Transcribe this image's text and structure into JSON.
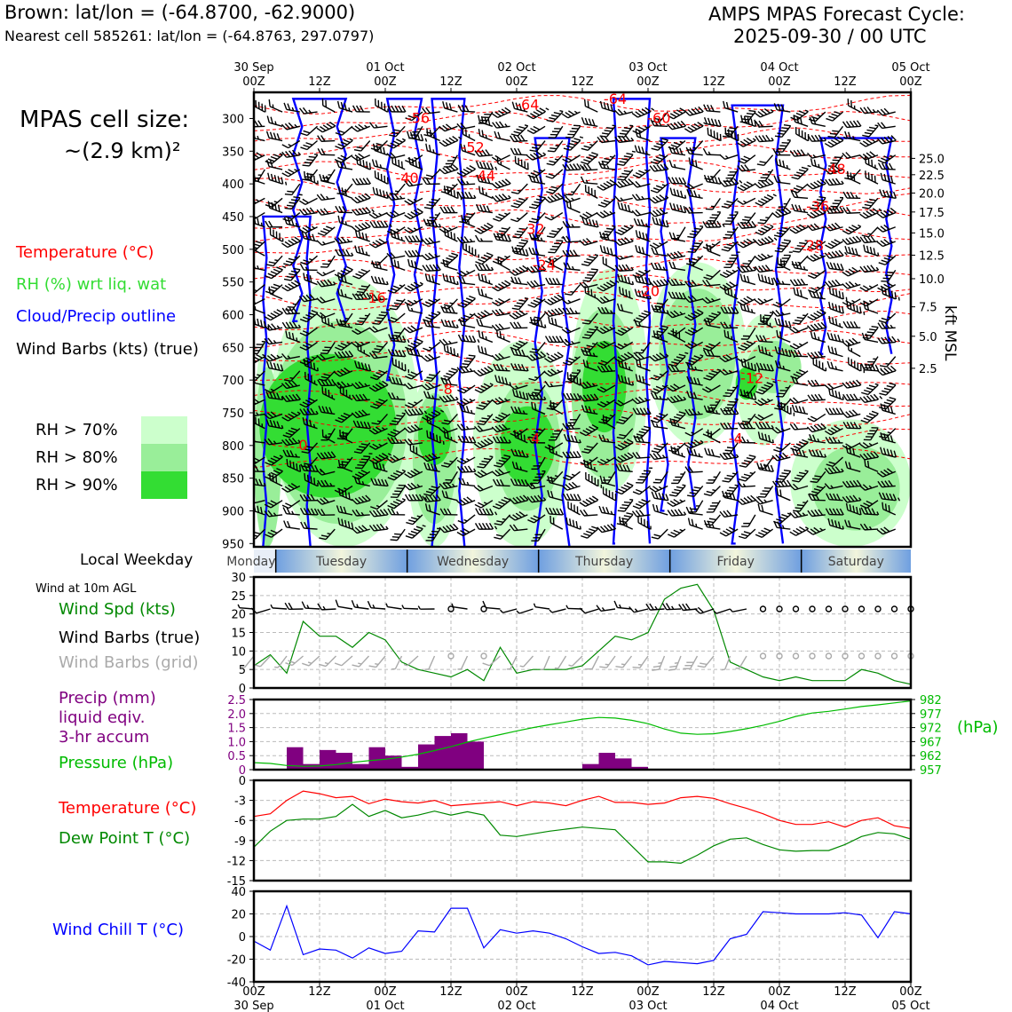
{
  "header": {
    "location": "Brown: lat/lon = (-64.8700, -62.9000)",
    "nearest_cell": "Nearest cell 585261: lat/lon = (-64.8763, 297.0797)",
    "cycle_title": "AMPS MPAS Forecast Cycle:",
    "cycle_time": "2025-09-30 / 00 UTC"
  },
  "side_labels": {
    "cell_size_title": "MPAS cell size:",
    "cell_size_value": "~(2.9 km)²",
    "temp_label": "Temperature (°C)",
    "rh_label": "RH (%) wrt liq. wat",
    "cloud_label": "Cloud/Precip outline",
    "barb_label": "Wind Barbs (kts) (true)",
    "rh70": "RH > 70%",
    "rh80": "RH > 80%",
    "rh90": "RH > 90%",
    "local_weekday": "Local Weekday",
    "wind_10m": "Wind at 10m AGL",
    "wind_spd": "Wind Spd (kts)",
    "wind_barbs_true": "Wind Barbs (true)",
    "wind_barbs_grid": "Wind Barbs (grid)",
    "precip_l1": "Precip (mm)",
    "precip_l2": "liquid eqiv.",
    "precip_l3": "3-hr accum",
    "pressure": "Pressure (hPa)",
    "pressure_unit": "(hPa)",
    "temperature": "Temperature (°C)",
    "dewpoint": "Dew Point T (°C)",
    "windchill": "Wind Chill T (°C)",
    "kft_label": "kft MSL"
  },
  "colors": {
    "rh70": "#ccffcc",
    "rh80": "#99ee99",
    "rh90": "#33dd33",
    "temperature": "#ff0000",
    "dewpoint": "#008800",
    "wind_speed": "#008800",
    "pressure": "#00bb00",
    "precip": "#800080",
    "windchill": "#0000ff",
    "cloud": "#0000ff",
    "grid_barb": "#aaaaaa"
  },
  "chart_data": [
    {
      "type": "heatmap",
      "title": "Time-height cross section",
      "x_top_labels": [
        {
          "hour": 0,
          "l1": "30 Sep",
          "l2": "00Z"
        },
        {
          "hour": 12,
          "l1": "",
          "l2": "12Z"
        },
        {
          "hour": 24,
          "l1": "01 Oct",
          "l2": "00Z"
        },
        {
          "hour": 36,
          "l1": "",
          "l2": "12Z"
        },
        {
          "hour": 48,
          "l1": "02 Oct",
          "l2": "00Z"
        },
        {
          "hour": 60,
          "l1": "",
          "l2": "12Z"
        },
        {
          "hour": 72,
          "l1": "03 Oct",
          "l2": "00Z"
        },
        {
          "hour": 84,
          "l1": "",
          "l2": "12Z"
        },
        {
          "hour": 96,
          "l1": "04 Oct",
          "l2": "00Z"
        },
        {
          "hour": 108,
          "l1": "",
          "l2": "12Z"
        },
        {
          "hour": 120,
          "l1": "05 Oct",
          "l2": "00Z"
        }
      ],
      "pressure_ticks": [
        300,
        350,
        400,
        450,
        500,
        550,
        600,
        650,
        700,
        750,
        800,
        850,
        900,
        950
      ],
      "ylim": [
        260,
        955
      ],
      "kft_ticks": [
        {
          "label": "25.0",
          "p": 361
        },
        {
          "label": "22.5",
          "p": 386
        },
        {
          "label": "20.0",
          "p": 414
        },
        {
          "label": "17.5",
          "p": 443
        },
        {
          "label": "15.0",
          "p": 475
        },
        {
          "label": "12.5",
          "p": 509
        },
        {
          "label": "10.0",
          "p": 545
        },
        {
          "label": "7.5",
          "p": 588
        },
        {
          "label": "5.0",
          "p": 633
        },
        {
          "label": "2.5",
          "p": 682
        }
      ],
      "temperature_contour_labels": [
        {
          "hour": 30,
          "p": 300,
          "label": "-56"
        },
        {
          "hour": 50,
          "p": 280,
          "label": "-64"
        },
        {
          "hour": 66,
          "p": 271,
          "label": "-64"
        },
        {
          "hour": 74,
          "p": 300,
          "label": "-60"
        },
        {
          "hour": 40,
          "p": 345,
          "label": "-52"
        },
        {
          "hour": 106,
          "p": 378,
          "label": "-48"
        },
        {
          "hour": 42,
          "p": 388,
          "label": "-44"
        },
        {
          "hour": 28,
          "p": 392,
          "label": "-40"
        },
        {
          "hour": 103,
          "p": 435,
          "label": "-36"
        },
        {
          "hour": 51,
          "p": 470,
          "label": "-32"
        },
        {
          "hour": 102,
          "p": 495,
          "label": "-28"
        },
        {
          "hour": 53,
          "p": 525,
          "label": "-24"
        },
        {
          "hour": 72,
          "p": 565,
          "label": "-20"
        },
        {
          "hour": 22,
          "p": 575,
          "label": "-16"
        },
        {
          "hour": 91,
          "p": 698,
          "label": "-12"
        },
        {
          "hour": 35,
          "p": 715,
          "label": "-8"
        },
        {
          "hour": 51,
          "p": 790,
          "label": "-4"
        },
        {
          "hour": 88,
          "p": 790,
          "label": "-4"
        },
        {
          "hour": 9,
          "p": 800,
          "label": "0"
        }
      ],
      "weekday_bar": [
        {
          "day": "Monday",
          "start": -5,
          "end": 4
        },
        {
          "day": "Tuesday",
          "start": 4,
          "end": 28
        },
        {
          "day": "Wednesday",
          "start": 28,
          "end": 52
        },
        {
          "day": "Thursday",
          "start": 52,
          "end": 76
        },
        {
          "day": "Friday",
          "start": 76,
          "end": 100
        },
        {
          "day": "Saturday",
          "start": 100,
          "end": 120
        }
      ]
    },
    {
      "type": "line",
      "title": "Wind at 10m AGL",
      "ylabel": "Wind Spd (kts)",
      "ylim": [
        0,
        30
      ],
      "y_ticks": [
        0,
        5,
        10,
        15,
        20,
        25,
        30
      ],
      "x_hours": [
        0,
        3,
        6,
        9,
        12,
        15,
        18,
        21,
        24,
        27,
        30,
        33,
        36,
        39,
        42,
        45,
        48,
        51,
        54,
        57,
        60,
        63,
        66,
        69,
        72,
        75,
        78,
        81,
        84,
        87,
        90,
        93,
        96,
        99,
        102,
        105,
        108,
        111,
        114,
        117,
        120
      ],
      "series": [
        {
          "name": "Wind Spd (kts)",
          "values": [
            6,
            9,
            4,
            18,
            14,
            14,
            11,
            15,
            13,
            7,
            5,
            4,
            3,
            5,
            2,
            11,
            4,
            5,
            5,
            5,
            6,
            10,
            14,
            13,
            15,
            24,
            27,
            28,
            21,
            7,
            5,
            3,
            2,
            3,
            2,
            2,
            2,
            5,
            4,
            2,
            1
          ]
        }
      ]
    },
    {
      "type": "bar",
      "title": "Precip and Pressure",
      "ylabel": "Precip (mm) liquid eqiv. 3-hr accum",
      "ylim": [
        0,
        2.5
      ],
      "y_ticks": [
        0,
        0.5,
        1.0,
        1.5,
        2.0,
        2.5
      ],
      "bars_start_hour": [
        6,
        9,
        12,
        15,
        18,
        21,
        24,
        27,
        30,
        33,
        36,
        39,
        42,
        45,
        48,
        51,
        54,
        57,
        60,
        63,
        66,
        69,
        72
      ],
      "values": [
        0.8,
        0.2,
        0.7,
        0.6,
        0.2,
        0.8,
        0.5,
        0.1,
        0.9,
        1.2,
        1.3,
        1.0,
        0,
        0,
        0,
        0,
        0,
        0,
        0.2,
        0.6,
        0.4,
        0.1,
        0
      ],
      "pressure_axis": {
        "ylim": [
          957,
          982
        ],
        "ticks": [
          957,
          962,
          967,
          972,
          977,
          982
        ]
      },
      "series": [
        {
          "name": "Pressure (hPa)",
          "values": [
            959.5,
            959.2,
            958.5,
            958.2,
            958.3,
            958.8,
            959.6,
            960.2,
            960.7,
            961.5,
            962.5,
            963.8,
            965.2,
            966.8,
            968.2,
            969.5,
            970.8,
            972.0,
            973.0,
            974.0,
            975.0,
            975.6,
            975.4,
            974.6,
            973.4,
            971.5,
            970.0,
            969.6,
            969.8,
            970.6,
            971.6,
            972.8,
            974.2,
            976.0,
            977.2,
            977.8,
            978.6,
            979.5,
            980.1,
            980.8,
            981.5
          ]
        }
      ]
    },
    {
      "type": "line",
      "title": "Temperature and Dew Point",
      "ylim": [
        -15,
        0
      ],
      "y_ticks": [
        0,
        -3,
        -6,
        -9,
        -12,
        -15
      ],
      "series": [
        {
          "name": "Temperature (°C)",
          "values": [
            -5.4,
            -5.0,
            -3.0,
            -1.6,
            -2.0,
            -2.6,
            -2.4,
            -3.5,
            -2.8,
            -3.2,
            -3.4,
            -3.0,
            -3.8,
            -3.6,
            -3.4,
            -3.2,
            -3.8,
            -3.2,
            -3.4,
            -3.8,
            -3.0,
            -2.4,
            -3.3,
            -3.3,
            -3.6,
            -3.4,
            -2.6,
            -2.4,
            -2.7,
            -3.5,
            -4.2,
            -5.0,
            -6.0,
            -6.6,
            -6.6,
            -6.2,
            -7.0,
            -6.0,
            -5.6,
            -6.8,
            -7.2
          ]
        },
        {
          "name": "Dew Point T (°C)",
          "values": [
            -10.0,
            -7.6,
            -6.0,
            -5.8,
            -5.8,
            -5.4,
            -3.6,
            -5.4,
            -4.5,
            -5.6,
            -5.2,
            -4.6,
            -5.2,
            -4.7,
            -5.2,
            -8.2,
            -8.4,
            -8.0,
            -7.6,
            -7.3,
            -7.0,
            -7.2,
            -7.4,
            -9.8,
            -12.2,
            -12.2,
            -12.4,
            -11.2,
            -9.8,
            -8.8,
            -8.6,
            -9.6,
            -10.4,
            -10.6,
            -10.5,
            -10.5,
            -9.6,
            -8.4,
            -7.8,
            -8.0,
            -8.8
          ]
        }
      ]
    },
    {
      "type": "line",
      "title": "Wind Chill",
      "ylim": [
        -40,
        40
      ],
      "y_ticks": [
        40,
        20,
        0,
        -20,
        -40
      ],
      "x_bottom_labels": [
        {
          "hour": 0,
          "l1": "00Z",
          "l2": "30 Sep"
        },
        {
          "hour": 12,
          "l1": "12Z",
          "l2": ""
        },
        {
          "hour": 24,
          "l1": "00Z",
          "l2": "01 Oct"
        },
        {
          "hour": 36,
          "l1": "12Z",
          "l2": ""
        },
        {
          "hour": 48,
          "l1": "00Z",
          "l2": "02 Oct"
        },
        {
          "hour": 60,
          "l1": "12Z",
          "l2": ""
        },
        {
          "hour": 72,
          "l1": "00Z",
          "l2": "03 Oct"
        },
        {
          "hour": 84,
          "l1": "12Z",
          "l2": ""
        },
        {
          "hour": 96,
          "l1": "00Z",
          "l2": "04 Oct"
        },
        {
          "hour": 108,
          "l1": "12Z",
          "l2": ""
        },
        {
          "hour": 120,
          "l1": "00Z",
          "l2": "05 Oct"
        }
      ],
      "series": [
        {
          "name": "Wind Chill T (°C)",
          "values": [
            -4,
            -12,
            27,
            -16,
            -11,
            -12,
            -19,
            -10,
            -15,
            -13,
            5,
            4,
            25,
            25,
            -10,
            6,
            3,
            5,
            3,
            -2,
            -9,
            -15,
            -14,
            -17,
            -25,
            -22,
            -23,
            -24,
            -21,
            -2,
            2,
            22,
            21,
            20,
            20,
            20,
            21,
            19,
            -1,
            22,
            20
          ]
        }
      ]
    }
  ]
}
